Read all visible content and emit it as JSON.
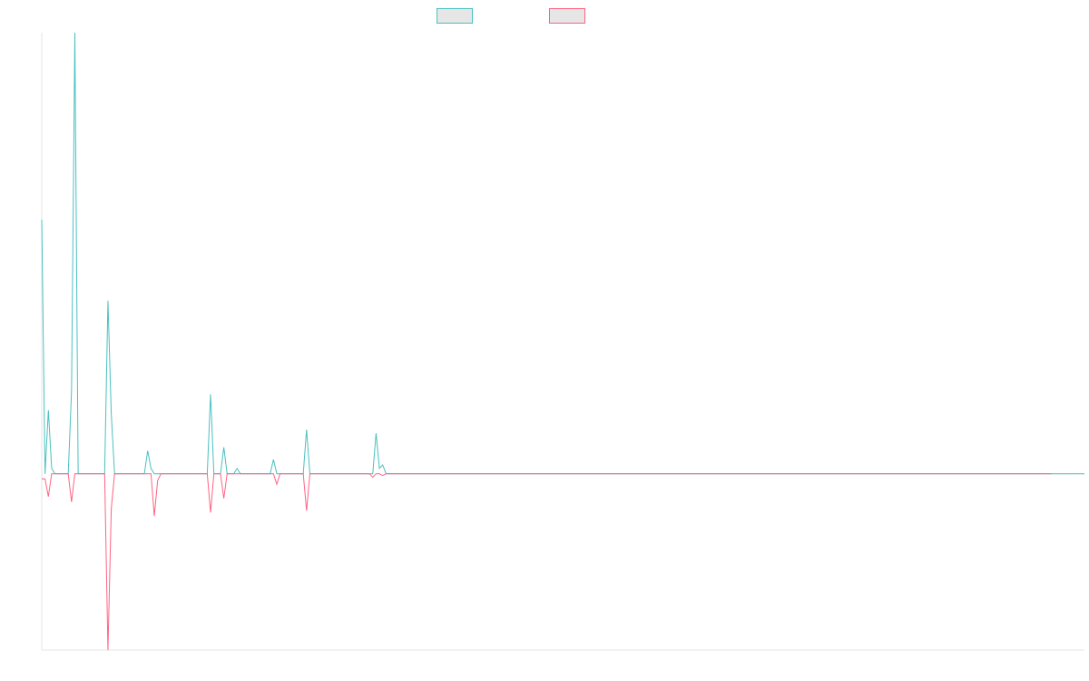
{
  "chart_data": {
    "type": "line",
    "title": "",
    "xlabel": "",
    "ylabel": "",
    "ylim": [
      -100,
      250
    ],
    "legend_position": "top",
    "grid": false,
    "series": [
      {
        "name": "",
        "color": "#4bc0c0",
        "fill": "#e6e6e6",
        "values": [
          144,
          0,
          36,
          3,
          0,
          0,
          0,
          0,
          0,
          47,
          250,
          0,
          0,
          0,
          0,
          0,
          0,
          0,
          0,
          0,
          98,
          34,
          0,
          0,
          0,
          0,
          0,
          0,
          0,
          0,
          0,
          0,
          13,
          3,
          0,
          0,
          0,
          0,
          0,
          0,
          0,
          0,
          0,
          0,
          0,
          0,
          0,
          0,
          0,
          0,
          0,
          45,
          0,
          0,
          0,
          15,
          0,
          0,
          0,
          3,
          0,
          0,
          0,
          0,
          0,
          0,
          0,
          0,
          0,
          0,
          8,
          0,
          0,
          0,
          0,
          0,
          0,
          0,
          0,
          0,
          25,
          0,
          0,
          0,
          0,
          0,
          0,
          0,
          0,
          0,
          0,
          0,
          0,
          0,
          0,
          0,
          0,
          0,
          0,
          0,
          0,
          23,
          3,
          5,
          0,
          0,
          0,
          0,
          0,
          0,
          0,
          0,
          0,
          0,
          0,
          0,
          0,
          0,
          0,
          0,
          0,
          0,
          0,
          0,
          0,
          0,
          0,
          0,
          0,
          0,
          0,
          0,
          0,
          0,
          0,
          0,
          0,
          0,
          0,
          0,
          0,
          0,
          0,
          0,
          0,
          0,
          0,
          0,
          0,
          0,
          0,
          0,
          0,
          0,
          0,
          0,
          0,
          0,
          0,
          0,
          0,
          0,
          0,
          0,
          0,
          0,
          0,
          0,
          0,
          0,
          0,
          0,
          0,
          0,
          0,
          0,
          0,
          0,
          0,
          0,
          0,
          0,
          0,
          0,
          0,
          0,
          0,
          0,
          0,
          0,
          0,
          0,
          0,
          0,
          0,
          0,
          0,
          0,
          0,
          0,
          0,
          0,
          0,
          0,
          0,
          0,
          0,
          0,
          0,
          0,
          0,
          0,
          0,
          0,
          0,
          0,
          0,
          0,
          0,
          0,
          0,
          0,
          0,
          0,
          0,
          0,
          0,
          0,
          0,
          0,
          0,
          0,
          0,
          0,
          0,
          0,
          0,
          0,
          0,
          0,
          0,
          0,
          0,
          0,
          0,
          0,
          0,
          0,
          0,
          0,
          0,
          0,
          0,
          0,
          0,
          0,
          0,
          0,
          0,
          0,
          0,
          0,
          0,
          0,
          0,
          0,
          0,
          0,
          0,
          0,
          0,
          0,
          0,
          0,
          0,
          0,
          0,
          0,
          0,
          0,
          0,
          0,
          0,
          0,
          0,
          0,
          0,
          0,
          0,
          0,
          0,
          0,
          0,
          0,
          0,
          0,
          0,
          0,
          0,
          0,
          0,
          0,
          0,
          0,
          0,
          0,
          0,
          0,
          0,
          0,
          0,
          0,
          0,
          0,
          0,
          0
        ]
      },
      {
        "name": "",
        "color": "#ff6384",
        "fill": "#e6e6e6",
        "values": [
          -3,
          -3,
          -13,
          0,
          0,
          0,
          0,
          0,
          0,
          -16,
          0,
          0,
          0,
          0,
          0,
          0,
          0,
          0,
          0,
          0,
          -100,
          -20,
          0,
          0,
          0,
          0,
          0,
          0,
          0,
          0,
          0,
          0,
          0,
          0,
          -24,
          -4,
          0,
          0,
          0,
          0,
          0,
          0,
          0,
          0,
          0,
          0,
          0,
          0,
          0,
          0,
          0,
          -22,
          0,
          0,
          0,
          -14,
          0,
          0,
          0,
          0,
          0,
          0,
          0,
          0,
          0,
          0,
          0,
          0,
          0,
          0,
          0,
          -6,
          0,
          0,
          0,
          0,
          0,
          0,
          0,
          0,
          -21,
          0,
          0,
          0,
          0,
          0,
          0,
          0,
          0,
          0,
          0,
          0,
          0,
          0,
          0,
          0,
          0,
          0,
          0,
          0,
          -2,
          0,
          0,
          -1,
          0,
          0,
          0,
          0,
          0,
          0,
          0,
          0,
          0,
          0,
          0,
          0,
          0,
          0,
          0,
          0,
          0,
          0,
          0,
          0,
          0,
          0,
          0,
          0,
          0,
          0,
          0,
          0,
          0,
          0,
          0,
          0,
          0,
          0,
          0,
          0,
          0,
          0,
          0,
          0,
          0,
          0,
          0,
          0,
          0,
          0,
          0,
          0,
          0,
          0,
          0,
          0,
          0,
          0,
          0,
          0,
          0,
          0,
          0,
          0,
          0,
          0,
          0,
          0,
          0,
          0,
          0,
          0,
          0,
          0,
          0,
          0,
          0,
          0,
          0,
          0,
          0,
          0,
          0,
          0,
          0,
          0,
          0,
          0,
          0,
          0,
          0,
          0,
          0,
          0,
          0,
          0,
          0,
          0,
          0,
          0,
          0,
          0,
          0,
          0,
          0,
          0,
          0,
          0,
          0,
          0,
          0,
          0,
          0,
          0,
          0,
          0,
          0,
          0,
          0,
          0,
          0,
          0,
          0,
          0,
          0,
          0,
          0,
          0,
          0,
          0,
          0,
          0,
          0,
          0,
          0,
          0,
          0,
          0,
          0,
          0,
          0,
          0,
          0,
          0,
          0,
          0,
          0,
          0,
          0,
          0,
          0,
          0,
          0,
          0,
          0,
          0,
          0,
          0,
          0,
          0,
          0,
          0,
          0,
          0,
          0,
          0,
          0,
          0,
          0,
          0,
          0,
          0,
          0,
          0,
          0,
          0,
          0,
          0,
          0,
          0,
          0,
          0,
          0,
          0,
          0,
          0,
          0,
          0,
          0,
          0,
          0,
          0,
          0,
          0,
          0,
          0,
          0,
          0,
          0,
          0,
          0,
          0,
          0,
          0,
          0,
          0
        ]
      }
    ]
  }
}
